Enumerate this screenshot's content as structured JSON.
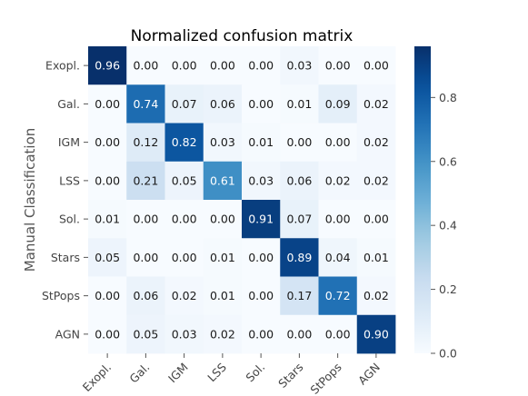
{
  "chart_data": {
    "type": "heatmap",
    "title": "Normalized confusion matrix",
    "ylabel": "Manual Classification",
    "xlabel": "",
    "x_categories": [
      "Exopl.",
      "Gal.",
      "IGM",
      "LSS",
      "Sol.",
      "Stars",
      "StPops",
      "AGN"
    ],
    "y_categories": [
      "Exopl.",
      "Gal.",
      "IGM",
      "LSS",
      "Sol.",
      "Stars",
      "StPops",
      "AGN"
    ],
    "values": [
      [
        0.96,
        0.0,
        0.0,
        0.0,
        0.0,
        0.03,
        0.0,
        0.0
      ],
      [
        0.0,
        0.74,
        0.07,
        0.06,
        0.0,
        0.01,
        0.09,
        0.02
      ],
      [
        0.0,
        0.12,
        0.82,
        0.03,
        0.01,
        0.0,
        0.0,
        0.02
      ],
      [
        0.0,
        0.21,
        0.05,
        0.61,
        0.03,
        0.06,
        0.02,
        0.02
      ],
      [
        0.01,
        0.0,
        0.0,
        0.0,
        0.91,
        0.07,
        0.0,
        0.0
      ],
      [
        0.05,
        0.0,
        0.0,
        0.01,
        0.0,
        0.89,
        0.04,
        0.01
      ],
      [
        0.0,
        0.06,
        0.02,
        0.01,
        0.0,
        0.17,
        0.72,
        0.02
      ],
      [
        0.0,
        0.05,
        0.03,
        0.02,
        0.0,
        0.0,
        0.0,
        0.9
      ]
    ],
    "value_format": "0.00",
    "colormap": "Blues",
    "colormap_low": "#f7fbff",
    "colormap_high": "#08306b",
    "colorbar": {
      "range": [
        0.0,
        0.96
      ],
      "ticks": [
        0.0,
        0.2,
        0.4,
        0.6,
        0.8
      ],
      "tick_labels": [
        "0.0",
        "0.2",
        "0.4",
        "0.6",
        "0.8"
      ]
    },
    "grid": false,
    "x_tick_rotation": "45 degrees"
  }
}
